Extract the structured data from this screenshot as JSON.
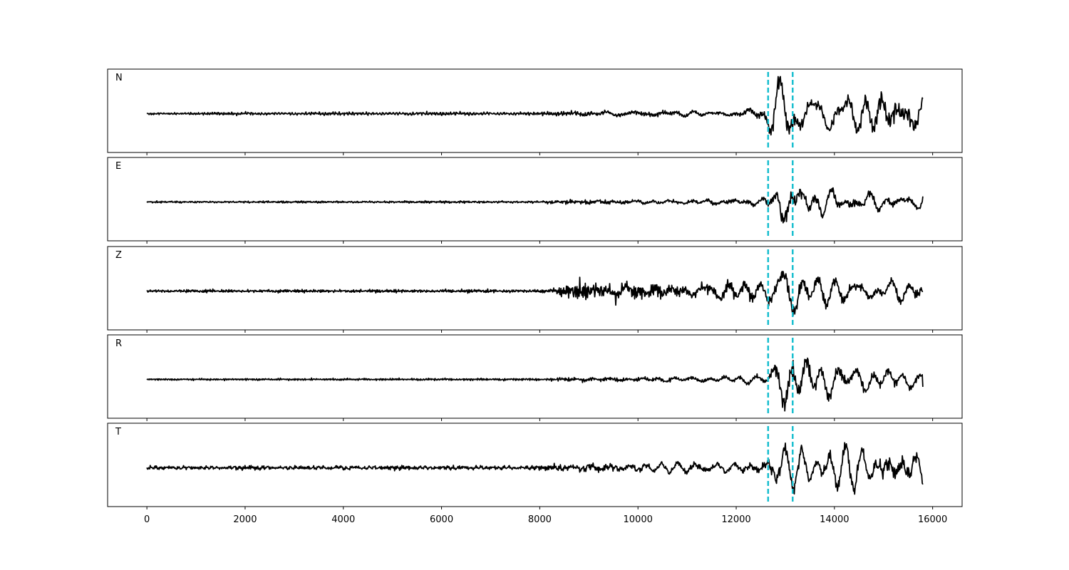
{
  "chart_data": {
    "type": "line",
    "title": "",
    "xlabel": "",
    "ylabel": "",
    "xlim": [
      -800,
      16600
    ],
    "x_ticks": [
      0,
      2000,
      4000,
      6000,
      8000,
      10000,
      12000,
      14000,
      16000
    ],
    "x_tick_labels": [
      "0",
      "2000",
      "4000",
      "6000",
      "8000",
      "10000",
      "12000",
      "14000",
      "16000"
    ],
    "n_samples": 15800,
    "grid": false,
    "legend": "none",
    "trace_color": "#000000",
    "marker_color": "#17becf",
    "vertical_markers": [
      12650,
      13150
    ],
    "panels": [
      {
        "label": "N",
        "envelope": [
          [
            0,
            0.05
          ],
          [
            8000,
            0.06
          ],
          [
            8400,
            0.08
          ],
          [
            9000,
            0.12
          ],
          [
            11000,
            0.12
          ],
          [
            12000,
            0.18
          ],
          [
            12600,
            0.3
          ],
          [
            12700,
            0.6
          ],
          [
            13000,
            0.85
          ],
          [
            13200,
            0.7
          ],
          [
            13500,
            0.55
          ],
          [
            14500,
            0.6
          ],
          [
            15000,
            0.8
          ],
          [
            15800,
            0.75
          ]
        ],
        "end_value": 0.4
      },
      {
        "label": "E",
        "envelope": [
          [
            0,
            0.03
          ],
          [
            8000,
            0.04
          ],
          [
            8500,
            0.07
          ],
          [
            11500,
            0.1
          ],
          [
            12500,
            0.15
          ],
          [
            12700,
            0.3
          ],
          [
            13000,
            0.85
          ],
          [
            13150,
            0.8
          ],
          [
            13400,
            0.6
          ],
          [
            14000,
            0.38
          ],
          [
            15000,
            0.25
          ],
          [
            15800,
            0.2
          ]
        ],
        "end_value": 0.15
      },
      {
        "label": "Z",
        "envelope": [
          [
            0,
            0.05
          ],
          [
            8200,
            0.06
          ],
          [
            8500,
            0.2
          ],
          [
            8800,
            0.45
          ],
          [
            9200,
            0.35
          ],
          [
            11000,
            0.3
          ],
          [
            12500,
            0.4
          ],
          [
            12800,
            0.45
          ],
          [
            13000,
            0.95
          ],
          [
            13200,
            0.75
          ],
          [
            13500,
            0.45
          ],
          [
            15000,
            0.35
          ],
          [
            15800,
            0.35
          ]
        ],
        "end_value": 0.0
      },
      {
        "label": "R",
        "envelope": [
          [
            0,
            0.03
          ],
          [
            8000,
            0.04
          ],
          [
            8500,
            0.07
          ],
          [
            11500,
            0.1
          ],
          [
            12500,
            0.15
          ],
          [
            12700,
            0.4
          ],
          [
            13000,
            0.9
          ],
          [
            13200,
            0.85
          ],
          [
            13600,
            0.6
          ],
          [
            14500,
            0.4
          ],
          [
            15500,
            0.3
          ],
          [
            15800,
            0.25
          ]
        ],
        "end_value": -0.2
      },
      {
        "label": "T",
        "envelope": [
          [
            0,
            0.08
          ],
          [
            8000,
            0.09
          ],
          [
            8800,
            0.18
          ],
          [
            11000,
            0.16
          ],
          [
            12300,
            0.25
          ],
          [
            12700,
            0.6
          ],
          [
            13000,
            0.85
          ],
          [
            13200,
            0.7
          ],
          [
            13600,
            0.55
          ],
          [
            14500,
            0.6
          ],
          [
            15000,
            0.85
          ],
          [
            15800,
            0.7
          ]
        ],
        "end_value": -0.45
      }
    ]
  }
}
